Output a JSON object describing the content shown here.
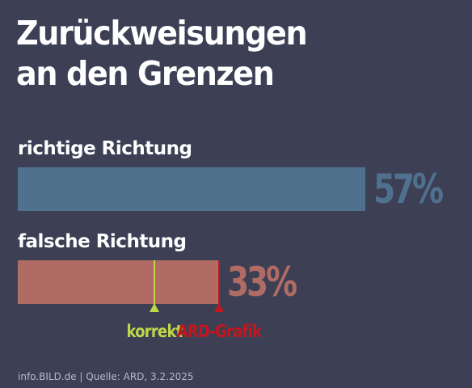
{
  "header": {
    "title_line1": "Zurückweisungen",
    "title_line2": "an den Grenzen"
  },
  "chart_data": {
    "type": "bar",
    "orientation": "horizontal",
    "categories": [
      "richtige Richtung",
      "falsche Richtung"
    ],
    "values": [
      57,
      33
    ],
    "value_labels": [
      "57%",
      "33%"
    ],
    "xlim": [
      0,
      57
    ],
    "grid": false,
    "colors": {
      "bar_1": "#50718e",
      "bar_2": "#b06b64",
      "marker_korrekt": "#bfd64a",
      "marker_ard": "#c4161c"
    },
    "markers": [
      {
        "label": "korrekt",
        "value": 33,
        "on_bar": 1,
        "within_bar": 0.68
      },
      {
        "label": "ARD-Grafik",
        "value": 33,
        "on_bar": 1,
        "within_bar": 1.0
      }
    ]
  },
  "footer": {
    "source": "info.BILD.de | Quelle: ARD, 3.2.2025"
  }
}
